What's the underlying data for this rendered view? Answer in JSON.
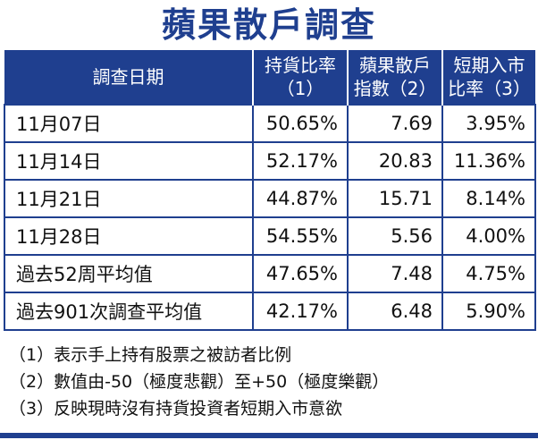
{
  "title": "蘋果散戶調查",
  "table": {
    "headers": [
      {
        "line1": "調查日期",
        "line2": ""
      },
      {
        "line1": "持貨比率",
        "line2": "（1）"
      },
      {
        "line1": "蘋果散戶",
        "line2": "指數（2）"
      },
      {
        "line1": "短期入市",
        "line2": "比率（3）"
      }
    ],
    "rows": [
      [
        "11月07日",
        "50.65%",
        "7.69",
        "3.95%"
      ],
      [
        "11月14日",
        "52.17%",
        "20.83",
        "11.36%"
      ],
      [
        "11月21日",
        "44.87%",
        "15.71",
        "8.14%"
      ],
      [
        "11月28日",
        "54.55%",
        "5.56",
        "4.00%"
      ],
      [
        "過去52周平均值",
        "47.65%",
        "7.48",
        "4.75%"
      ],
      [
        "過去901次調查平均值",
        "42.17%",
        "6.48",
        "5.90%"
      ]
    ]
  },
  "notes": [
    "（1）表示手上持有股票之被訪者比例",
    "（2）數值由-50（極度悲觀）至+50（極度樂觀）",
    "（3）反映現時沒有持貨投資者短期入市意欲"
  ],
  "colors": {
    "accent": "#1f3f8f",
    "header_text": "#ffffff",
    "body_text": "#111111"
  }
}
